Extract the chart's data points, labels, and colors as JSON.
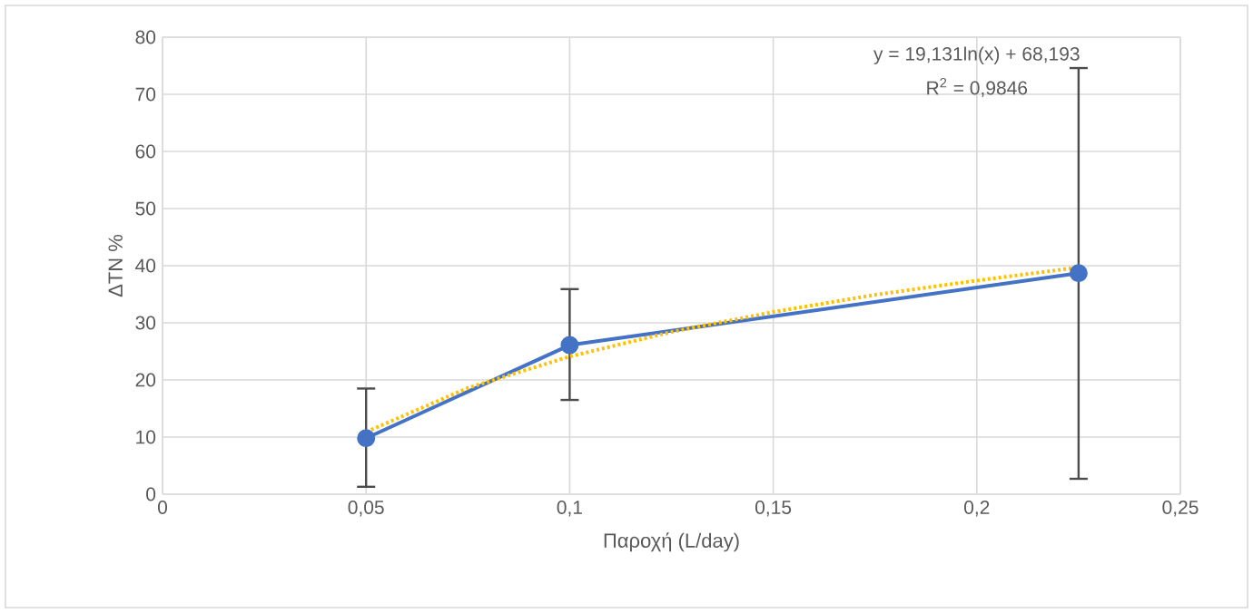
{
  "chart_data": {
    "type": "line",
    "xlabel": "Παροχή (L/day)",
    "ylabel": "ΔTN %",
    "annotations": [
      "y = 19,131ln(x) + 68,193",
      "R$^{2}$ = 0,9846"
    ],
    "xlim": [
      0,
      0.25
    ],
    "ylim": [
      0,
      80
    ],
    "xticks": [
      {
        "value": 0,
        "label": "0"
      },
      {
        "value": 0.05,
        "label": "0,05"
      },
      {
        "value": 0.1,
        "label": "0,1"
      },
      {
        "value": 0.15,
        "label": "0,15"
      },
      {
        "value": 0.2,
        "label": "0,2"
      },
      {
        "value": 0.25,
        "label": "0,25"
      }
    ],
    "yticks": [
      0,
      10,
      20,
      30,
      40,
      50,
      60,
      70,
      80
    ],
    "grid": true,
    "series": [
      {
        "color": "#4472c4",
        "x": [
          0.05,
          0.1,
          0.225
        ],
        "values": [
          9.8,
          26.1,
          38.7
        ],
        "errors": [
          [
            1.3,
            18.5
          ],
          [
            16.5,
            35.9
          ],
          [
            2.7,
            74.6
          ]
        ],
        "marker": "circle",
        "line_style": "solid"
      },
      {
        "type": "line",
        "color": "#ffc000",
        "x": [
          0.05,
          0.075,
          0.1,
          0.125,
          0.15,
          0.175,
          0.2,
          0.225
        ],
        "values": [
          10.9,
          18.6,
          24.1,
          28.4,
          31.9,
          34.9,
          37.4,
          39.7
        ],
        "marker": "none",
        "line_style": "dotted"
      }
    ]
  }
}
